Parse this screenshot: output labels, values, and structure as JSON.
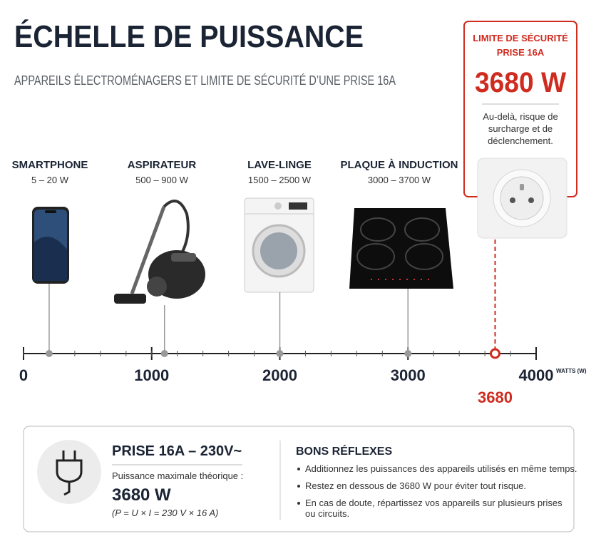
{
  "header": {
    "title": "ÉCHELLE DE PUISSANCE",
    "subtitle": "APPAREILS ÉLECTROMÉNAGERS ET LIMITE DE SÉCURITÉ D’UNE PRISE 16A"
  },
  "limit_box": {
    "title_lines": [
      "LIMITE DE SÉCURITÉ",
      "PRISE 16A"
    ],
    "value": "3680 W",
    "note_lines": [
      "Au-delà, risque de",
      "surcharge et de",
      "déclenchement."
    ]
  },
  "appliances": [
    {
      "name": "SMARTPHONE",
      "range": "5 – 20 W",
      "position": 200
    },
    {
      "name": "ASPIRATEUR",
      "range": "500 – 900 W",
      "position": 1100
    },
    {
      "name": "LAVE-LINGE",
      "range": "1500 – 2500 W",
      "position": 2000
    },
    {
      "name": "PLAQUE À INDUCTION",
      "range": "3000 – 3700 W",
      "position": 3000
    }
  ],
  "scale": {
    "xlim": [
      0,
      4000
    ],
    "xticks": [
      0,
      1000,
      2000,
      3000,
      4000
    ],
    "unit": "WATTS (W)",
    "limit": 3680
  },
  "info_box": {
    "title": "PRISE 16A – 230V~",
    "caption": "Puissance maximale théorique :",
    "value": "3680 W",
    "formula": "(P = U × I = 230 V × 16 A)",
    "tips_title": "BONS RÉFLEXES",
    "tips": [
      [
        "Additionnez les puissances des appareils utilisés en même temps."
      ],
      [
        "Restez en dessous de 3680 W pour éviter tout risque."
      ],
      [
        "En cas de doute, répartissez vos appareils sur plusieurs prises",
        "ou circuits."
      ]
    ]
  }
}
